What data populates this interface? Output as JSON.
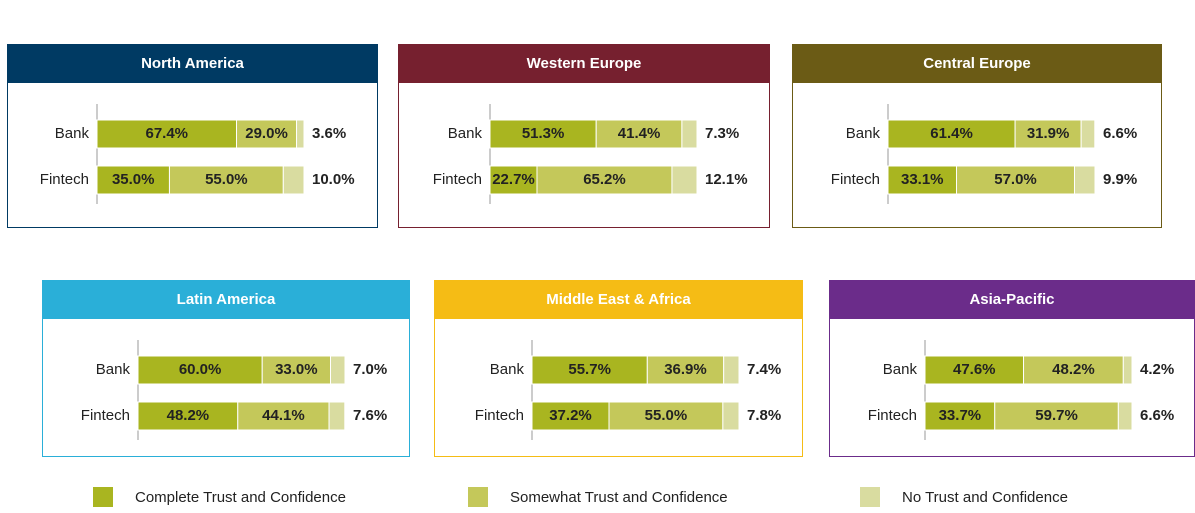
{
  "chart_data": {
    "type": "bar",
    "stacked": true,
    "orientation": "horizontal",
    "series": [
      {
        "name": "Complete Trust and Confidence",
        "color": "#a9b520"
      },
      {
        "name": "Somewhat Trust and Confidence",
        "color": "#c4c85a"
      },
      {
        "name": "No Trust and Confidence",
        "color": "#d9dca0"
      }
    ],
    "panels": [
      {
        "title": "North America",
        "color": "#003a63",
        "categories": [
          "Bank",
          "Fintech"
        ],
        "series": [
          {
            "values": [
              67.4,
              35.0
            ],
            "value_labels": [
              "67.4%",
              "35.0%"
            ]
          },
          {
            "values": [
              29.0,
              55.0
            ],
            "value_labels": [
              "29.0%",
              "55.0%"
            ]
          },
          {
            "values": [
              3.6,
              10.0
            ],
            "value_labels": [
              "3.6%",
              "10.0%"
            ]
          }
        ]
      },
      {
        "title": "Western Europe",
        "color": "#76202f",
        "categories": [
          "Bank",
          "Fintech"
        ],
        "series": [
          {
            "values": [
              51.3,
              22.7
            ],
            "value_labels": [
              "51.3%",
              "22.7%"
            ]
          },
          {
            "values": [
              41.4,
              65.2
            ],
            "value_labels": [
              "41.4%",
              "65.2%"
            ]
          },
          {
            "values": [
              7.3,
              12.1
            ],
            "value_labels": [
              "7.3%",
              "12.1%"
            ]
          }
        ]
      },
      {
        "title": "Central Europe",
        "color": "#6b5b15",
        "categories": [
          "Bank",
          "Fintech"
        ],
        "series": [
          {
            "values": [
              61.4,
              33.1
            ],
            "value_labels": [
              "61.4%",
              "33.1%"
            ]
          },
          {
            "values": [
              31.9,
              57.0
            ],
            "value_labels": [
              "31.9%",
              "57.0%"
            ]
          },
          {
            "values": [
              6.6,
              9.9
            ],
            "value_labels": [
              "6.6%",
              "9.9%"
            ]
          }
        ]
      },
      {
        "title": "Latin America",
        "color": "#2aafd8",
        "categories": [
          "Bank",
          "Fintech"
        ],
        "series": [
          {
            "values": [
              60.0,
              48.2
            ],
            "value_labels": [
              "60.0%",
              "48.2%"
            ]
          },
          {
            "values": [
              33.0,
              44.1
            ],
            "value_labels": [
              "33.0%",
              "44.1%"
            ]
          },
          {
            "values": [
              7.0,
              7.6
            ],
            "value_labels": [
              "7.0%",
              "7.6%"
            ]
          }
        ]
      },
      {
        "title": "Middle East & Africa",
        "color": "#f5bc15",
        "categories": [
          "Bank",
          "Fintech"
        ],
        "series": [
          {
            "values": [
              55.7,
              37.2
            ],
            "value_labels": [
              "55.7%",
              "37.2%"
            ]
          },
          {
            "values": [
              36.9,
              55.0
            ],
            "value_labels": [
              "36.9%",
              "55.0%"
            ]
          },
          {
            "values": [
              7.4,
              7.8
            ],
            "value_labels": [
              "7.4%",
              "7.8%"
            ]
          }
        ]
      },
      {
        "title": "Asia-Pacific",
        "color": "#6b2c8a",
        "categories": [
          "Bank",
          "Fintech"
        ],
        "series": [
          {
            "values": [
              47.6,
              33.7
            ],
            "value_labels": [
              "47.6%",
              "33.7%"
            ]
          },
          {
            "values": [
              48.2,
              59.7
            ],
            "value_labels": [
              "48.2%",
              "59.7%"
            ]
          },
          {
            "values": [
              4.2,
              6.6
            ],
            "value_labels": [
              "4.2%",
              "6.6%"
            ]
          }
        ]
      }
    ]
  }
}
